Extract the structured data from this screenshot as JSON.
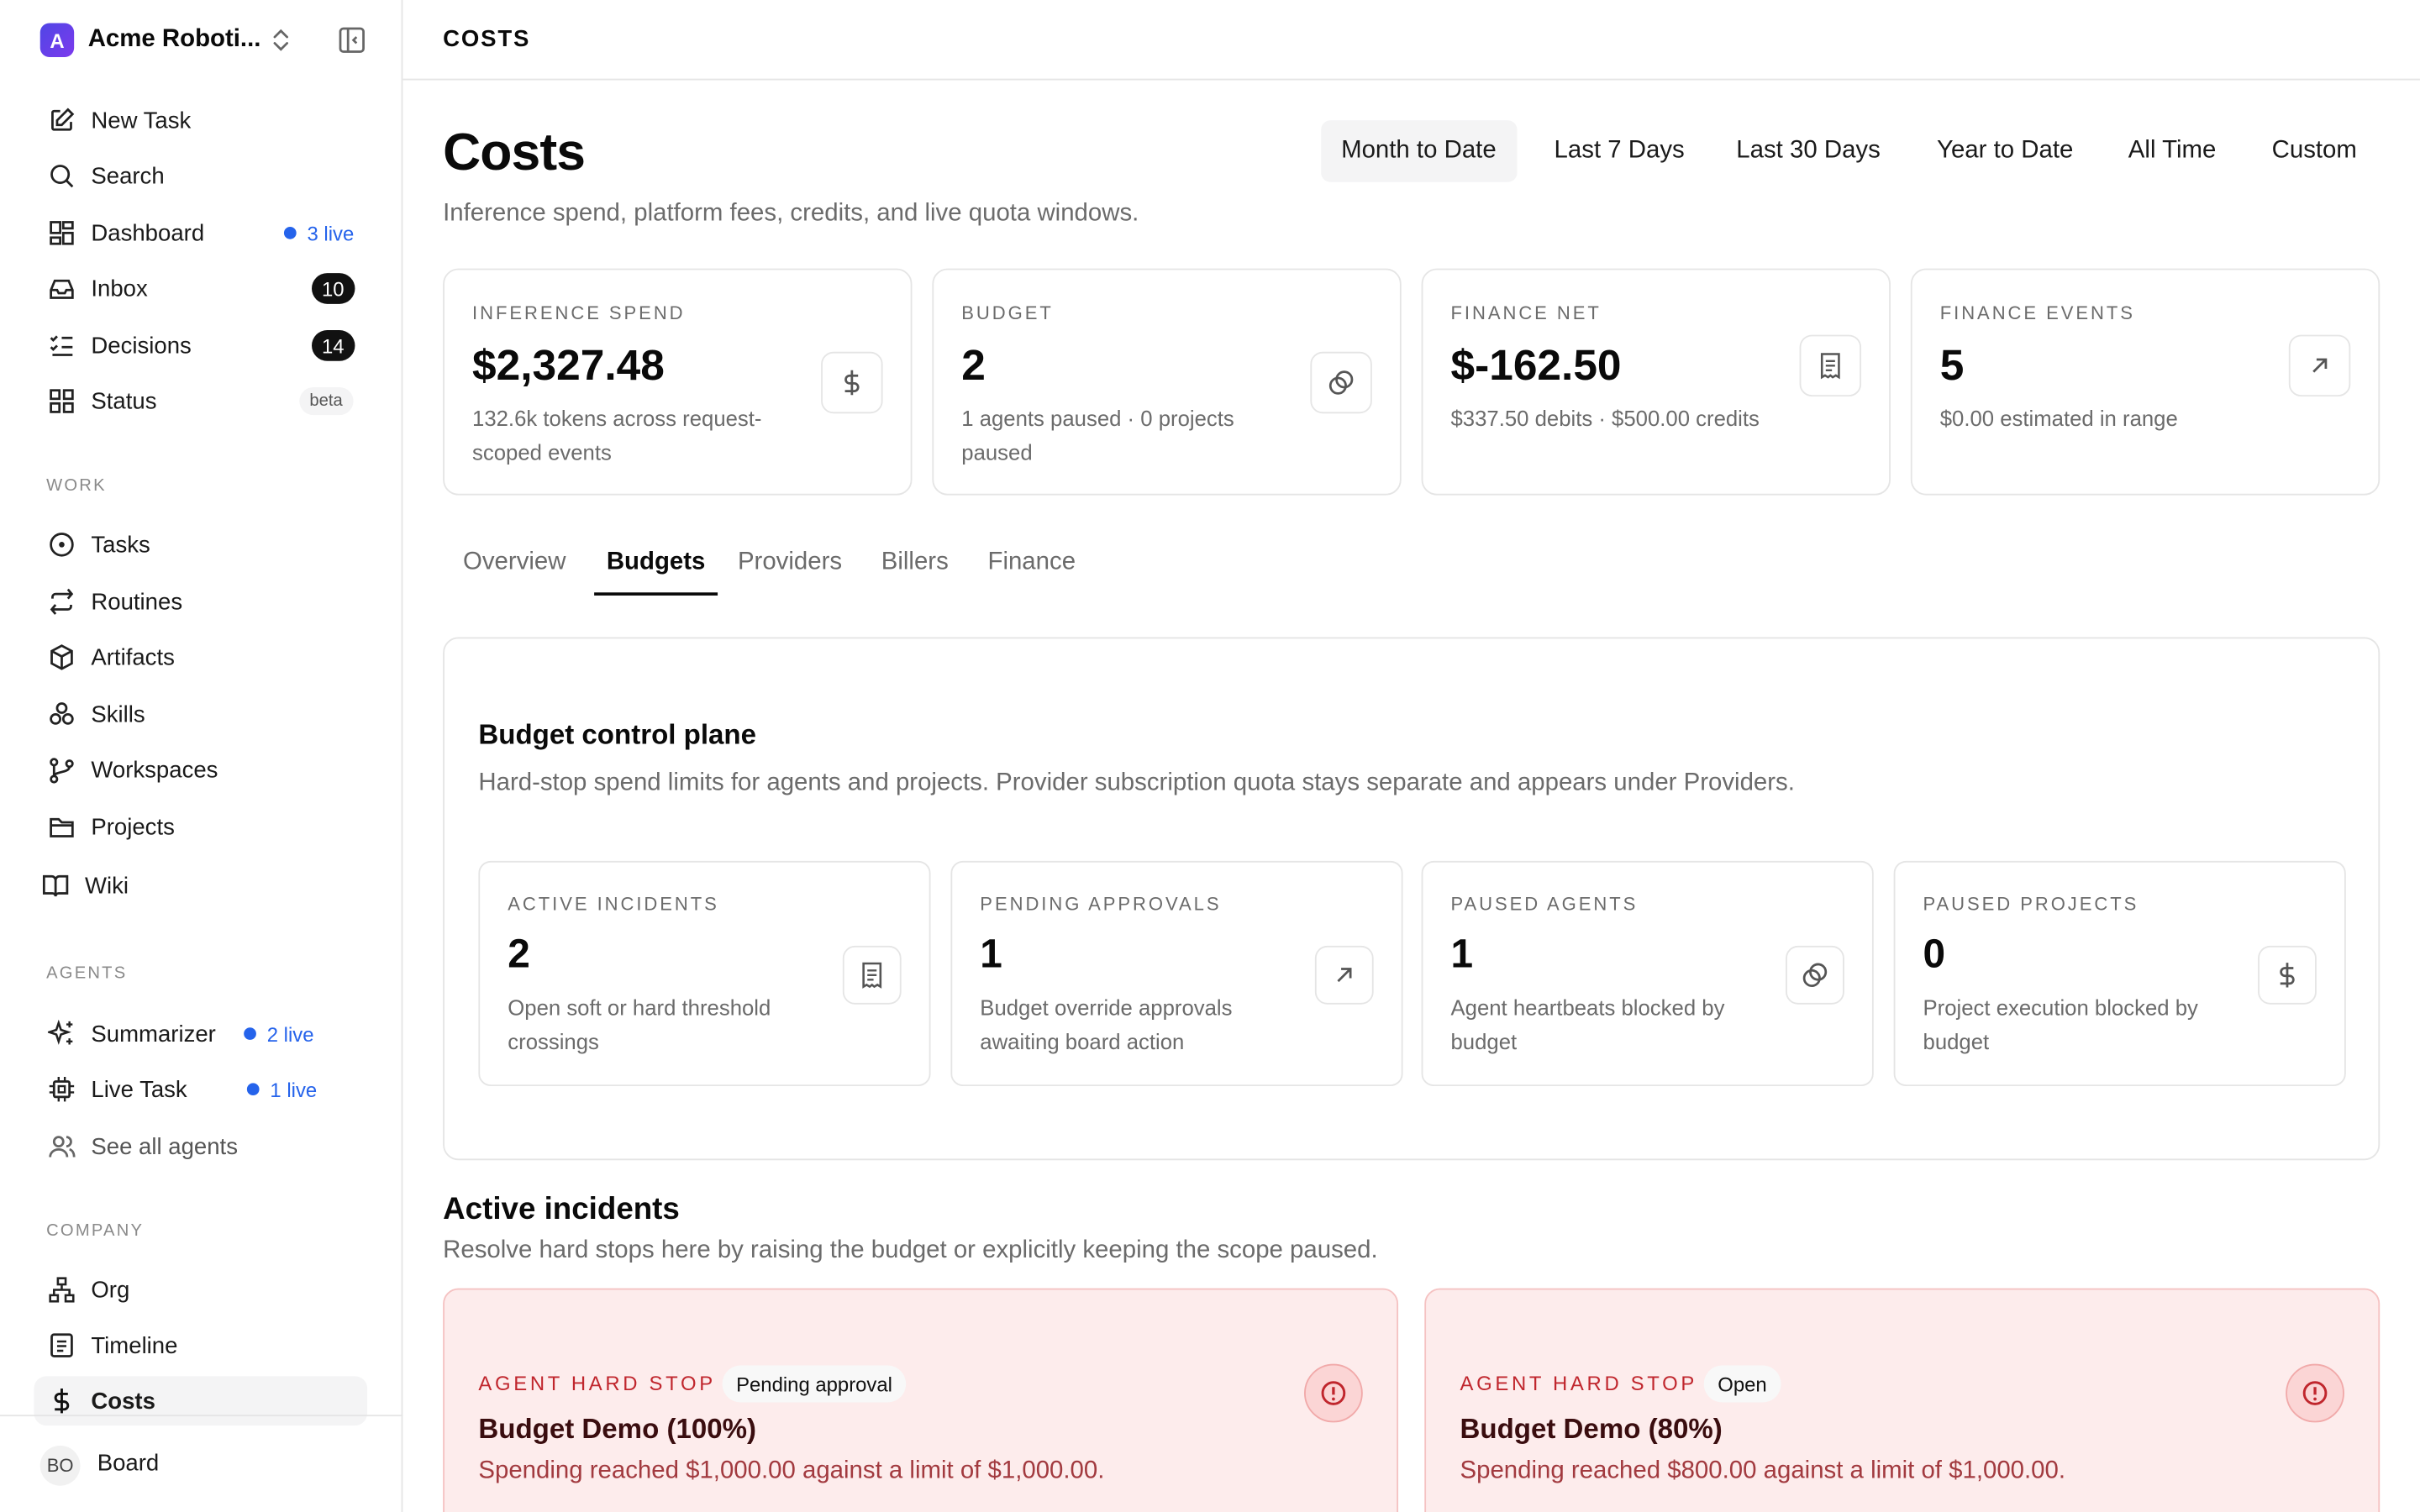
{
  "sidebar": {
    "org_name": "Acme Roboti...",
    "org_initial": "A",
    "nav": {
      "new_task": "New Task",
      "search": "Search",
      "dashboard": "Dashboard",
      "dashboard_live": "3 live",
      "inbox": "Inbox",
      "inbox_count": "10",
      "decisions": "Decisions",
      "decisions_count": "14",
      "status": "Status",
      "status_badge": "beta"
    },
    "work_label": "WORK",
    "work": {
      "tasks": "Tasks",
      "routines": "Routines",
      "artifacts": "Artifacts",
      "skills": "Skills",
      "workspaces": "Workspaces",
      "projects": "Projects",
      "wiki": "Wiki"
    },
    "agents_label": "AGENTS",
    "agents": {
      "summarizer": "Summarizer",
      "summarizer_live": "2 live",
      "live_task": "Live Task",
      "live_task_live": "1 live",
      "see_all": "See all agents"
    },
    "company_label": "COMPANY",
    "company": {
      "org": "Org",
      "timeline": "Timeline",
      "costs": "Costs"
    },
    "footer": {
      "avatar": "BO",
      "name": "Board"
    }
  },
  "header": {
    "title": "COSTS"
  },
  "page": {
    "title": "Costs",
    "subtitle": "Inference spend, platform fees, credits, and live quota windows.",
    "ranges": [
      "Month to Date",
      "Last 7 Days",
      "Last 30 Days",
      "Year to Date",
      "All Time",
      "Custom"
    ],
    "active_range": "Month to Date"
  },
  "stats": [
    {
      "label": "INFERENCE SPEND",
      "value": "$2,327.48",
      "desc": "132.6k tokens across request-scoped events",
      "icon": "dollar-icon"
    },
    {
      "label": "BUDGET",
      "value": "2",
      "desc": "1 agents paused · 0 projects paused",
      "icon": "coins-icon"
    },
    {
      "label": "FINANCE NET",
      "value": "$-162.50",
      "desc": "$337.50 debits · $500.00 credits",
      "icon": "receipt-icon"
    },
    {
      "label": "FINANCE EVENTS",
      "value": "5",
      "desc": "$0.00 estimated in range",
      "icon": "arrow-up-right-icon"
    }
  ],
  "tabs": [
    "Overview",
    "Budgets",
    "Providers",
    "Billers",
    "Finance"
  ],
  "active_tab": "Budgets",
  "budget_panel": {
    "title": "Budget control plane",
    "subtitle": "Hard-stop spend limits for agents and projects. Provider subscription quota stays separate and appears under Providers.",
    "cards": [
      {
        "label": "ACTIVE INCIDENTS",
        "value": "2",
        "desc": "Open soft or hard threshold crossings",
        "icon": "receipt-icon"
      },
      {
        "label": "PENDING APPROVALS",
        "value": "1",
        "desc": "Budget override approvals awaiting board action",
        "icon": "arrow-up-right-icon"
      },
      {
        "label": "PAUSED AGENTS",
        "value": "1",
        "desc": "Agent heartbeats blocked by budget",
        "icon": "coins-icon"
      },
      {
        "label": "PAUSED PROJECTS",
        "value": "0",
        "desc": "Project execution blocked by budget",
        "icon": "dollar-icon"
      }
    ]
  },
  "incidents": {
    "title": "Active incidents",
    "subtitle": "Resolve hard stops here by raising the budget or explicitly keeping the scope paused.",
    "items": [
      {
        "kind": "AGENT HARD STOP",
        "status": "Pending approval",
        "title": "Budget Demo (100%)",
        "desc": "Spending reached $1,000.00 against a limit of $1,000.00."
      },
      {
        "kind": "AGENT HARD STOP",
        "status": "Open",
        "title": "Budget Demo (80%)",
        "desc": "Spending reached $800.00 against a limit of $1,000.00."
      }
    ]
  },
  "colors": {
    "accent": "#2563eb",
    "danger": "#c0262d",
    "incident_bg": "#fdecec"
  }
}
